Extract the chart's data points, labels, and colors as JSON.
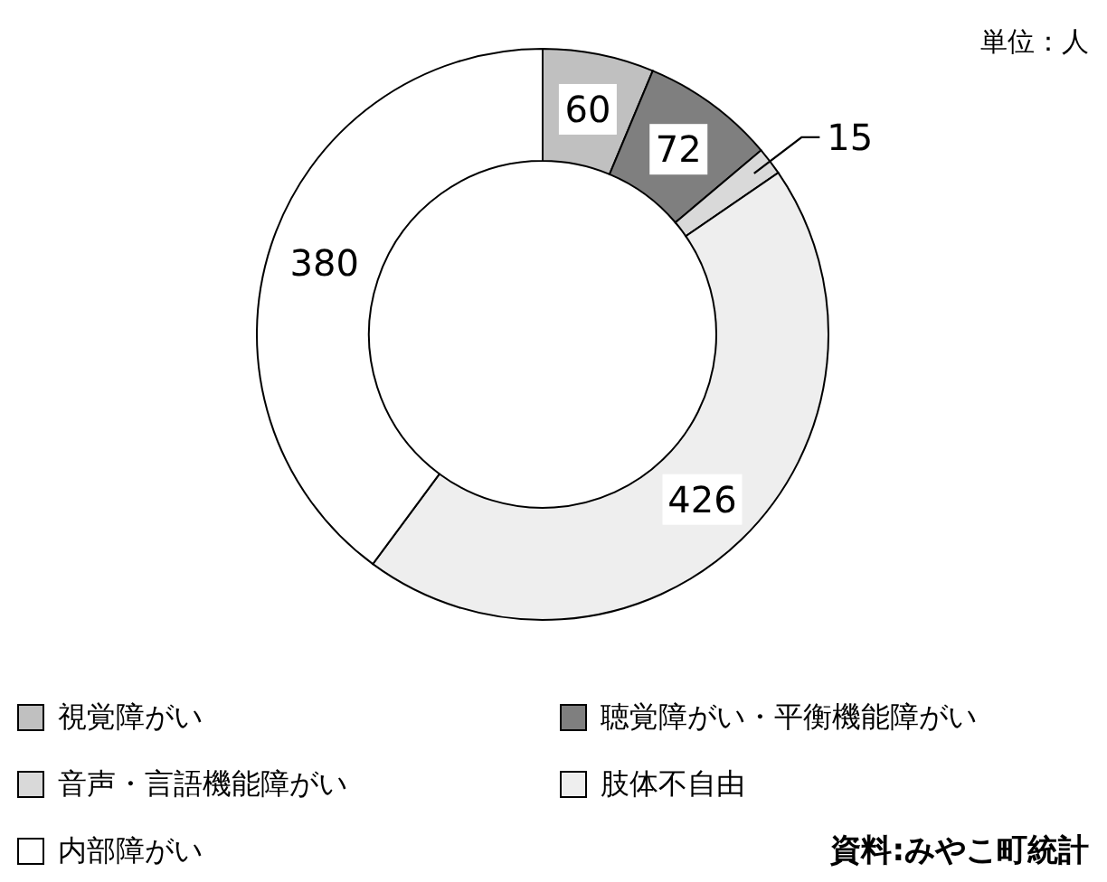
{
  "chart_data": {
    "type": "donut",
    "categories": [
      "視覚障がい",
      "聴覚障がい・平衡機能障がい",
      "音声・言語機能障がい",
      "肢体不自由",
      "内部障がい"
    ],
    "values": [
      60,
      72,
      15,
      426,
      380
    ],
    "colors": [
      "#c0c0c0",
      "#7f7f7f",
      "#d9d9d9",
      "#eeeeee",
      "#ffffff"
    ],
    "data_labels": true,
    "legend": "bottom",
    "annotations": [
      "単位：人",
      "資料:みやこ町統計"
    ]
  }
}
